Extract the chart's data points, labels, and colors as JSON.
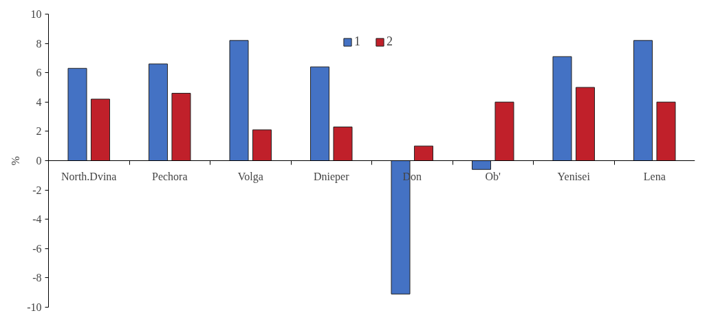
{
  "chart_data": {
    "type": "bar",
    "ylabel": "%",
    "categories": [
      "North.Dvina",
      "Pechora",
      "Volga",
      "Dnieper",
      "Don",
      "Ob'",
      "Yenisei",
      "Lena"
    ],
    "series": [
      {
        "name": "1",
        "color": "#4472c4",
        "values": [
          6.3,
          6.6,
          8.2,
          6.4,
          -9.1,
          -0.6,
          7.1,
          8.2
        ]
      },
      {
        "name": "2",
        "color": "#c0202a",
        "values": [
          4.2,
          4.6,
          2.1,
          2.3,
          1.0,
          4.0,
          5.0,
          4.0
        ]
      }
    ],
    "ylim": [
      -10,
      10
    ],
    "yticks": [
      -10,
      -8,
      -6,
      -4,
      -2,
      0,
      2,
      4,
      6,
      8,
      10
    ],
    "legend": "top",
    "grid": false
  }
}
